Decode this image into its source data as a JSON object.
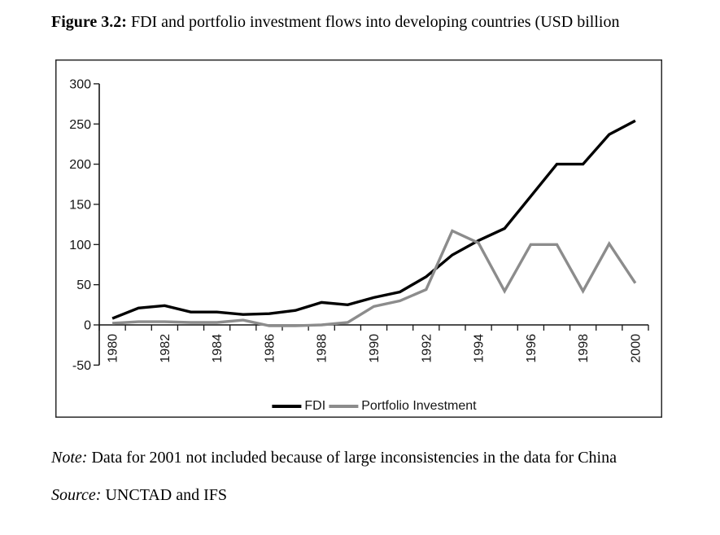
{
  "figure": {
    "caption_label": "Figure 3.2:",
    "caption_text": " FDI and portfolio investment flows into developing countries (USD billion",
    "note_label": "Note:",
    "note_text": " Data for 2001 not included because of large inconsistencies in the data for China",
    "source_label": "Source:",
    "source_text": " UNCTAD and IFS"
  },
  "chart_data": {
    "type": "line",
    "title": "FDI and portfolio investment flows into developing countries (USD billion)",
    "x": [
      1980,
      1981,
      1982,
      1983,
      1984,
      1985,
      1986,
      1987,
      1988,
      1989,
      1990,
      1991,
      1992,
      1993,
      1994,
      1995,
      1996,
      1997,
      1998,
      1999,
      2000
    ],
    "series": [
      {
        "name": "FDI",
        "color": "#000000",
        "values": [
          8,
          21,
          24,
          16,
          16,
          13,
          14,
          18,
          28,
          25,
          34,
          41,
          60,
          87,
          105,
          120,
          160,
          200,
          200,
          237,
          254
        ]
      },
      {
        "name": "Portfolio Investment",
        "color": "#8c8c8c",
        "values": [
          2,
          4,
          4,
          3,
          3,
          6,
          -1,
          -1,
          0,
          3,
          23,
          30,
          44,
          117,
          102,
          42,
          100,
          100,
          42,
          101,
          52
        ]
      }
    ],
    "ylim": [
      -50,
      300
    ],
    "yticks": [
      300,
      250,
      200,
      150,
      100,
      50,
      0,
      -50
    ],
    "xtick_labels": [
      "1980",
      "1982",
      "1984",
      "1986",
      "1988",
      "1990",
      "1992",
      "1994",
      "1996",
      "1998",
      "2000"
    ],
    "xtick_label_rotation": -90,
    "grid": false,
    "legend_position": "bottom-center",
    "axis_color": "#151515"
  }
}
